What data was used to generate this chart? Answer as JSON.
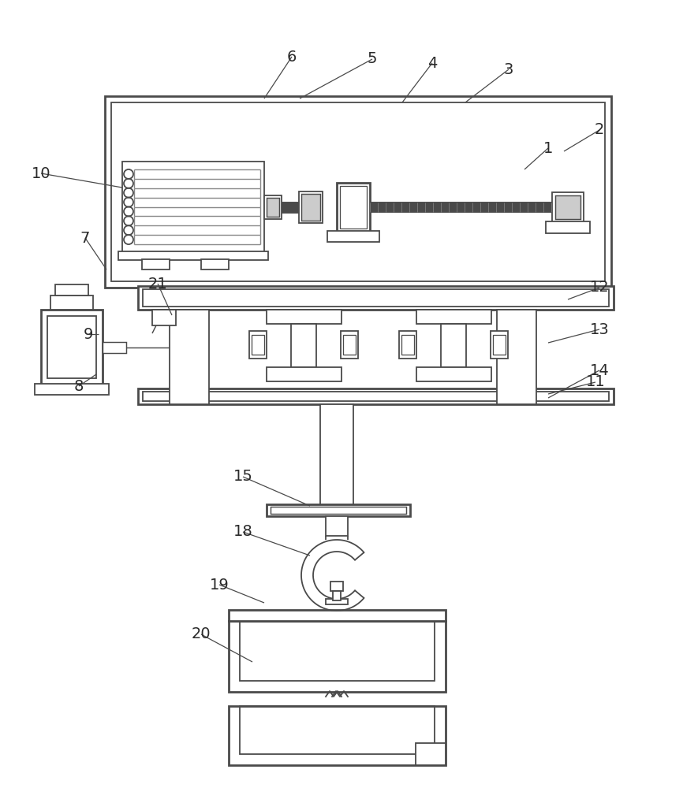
{
  "line_color": "#4a4a4a",
  "lw": 1.3,
  "tlw": 2.0,
  "bg": "#ffffff",
  "label_color": "#2a2a2a",
  "label_fs": 14,
  "dark": "#4a4a4a",
  "gray": "#888888",
  "lgray": "#cccccc"
}
